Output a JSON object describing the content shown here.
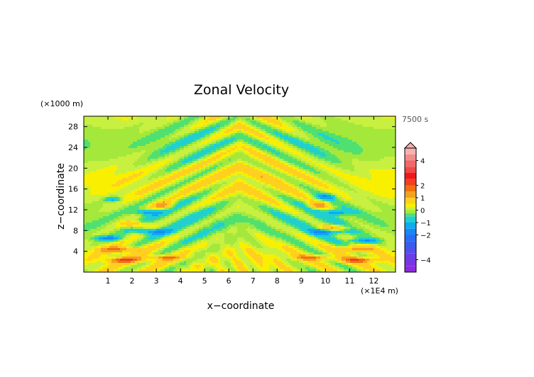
{
  "chart_data": {
    "type": "heatmap",
    "title": "Zonal Velocity",
    "time_label": "7500 s",
    "x_axis": {
      "label": "x−coordinate",
      "unit_label": "(×1E4 m)",
      "ticks": [
        "1",
        "2",
        "3",
        "4",
        "5",
        "6",
        "7",
        "8",
        "9",
        "10",
        "11",
        "12"
      ],
      "range": [
        0,
        12.9
      ]
    },
    "y_axis": {
      "label": "z−coordinate",
      "unit_label": "(×1000 m)",
      "ticks": [
        "4",
        "8",
        "12",
        "16",
        "20",
        "24",
        "28"
      ],
      "range": [
        0,
        30
      ]
    },
    "colorbar": {
      "tick_labels": [
        "4",
        "2",
        "1",
        "0",
        "−1",
        "−2",
        "−4"
      ],
      "tick_values": [
        4,
        2,
        1,
        0,
        -1,
        -2,
        -4
      ],
      "range": [
        -5,
        5
      ],
      "levels": [
        {
          "lo": -5.0,
          "hi": -4.5,
          "color": "#8a2be2"
        },
        {
          "lo": -4.5,
          "hi": -4.0,
          "color": "#7a35e6"
        },
        {
          "lo": -4.0,
          "hi": -3.5,
          "color": "#6a3fe8"
        },
        {
          "lo": -3.5,
          "hi": -3.0,
          "color": "#5050ec"
        },
        {
          "lo": -3.0,
          "hi": -2.5,
          "color": "#3c5cf0"
        },
        {
          "lo": -2.5,
          "hi": -2.0,
          "color": "#2a6cf4"
        },
        {
          "lo": -2.0,
          "hi": -1.5,
          "color": "#1a86f8"
        },
        {
          "lo": -1.5,
          "hi": -1.0,
          "color": "#10aaf0"
        },
        {
          "lo": -1.0,
          "hi": -0.5,
          "color": "#20d0d0"
        },
        {
          "lo": -0.5,
          "hi": -0.25,
          "color": "#50e070"
        },
        {
          "lo": -0.25,
          "hi": 0.0,
          "color": "#a4e83c"
        },
        {
          "lo": 0.0,
          "hi": 0.25,
          "color": "#c8f040"
        },
        {
          "lo": 0.25,
          "hi": 0.5,
          "color": "#f8f000"
        },
        {
          "lo": 0.5,
          "hi": 1.0,
          "color": "#ffd020"
        },
        {
          "lo": 1.0,
          "hi": 1.5,
          "color": "#f4a020"
        },
        {
          "lo": 1.5,
          "hi": 2.0,
          "color": "#f07010"
        },
        {
          "lo": 2.0,
          "hi": 2.5,
          "color": "#f04020"
        },
        {
          "lo": 2.5,
          "hi": 3.0,
          "color": "#f01818"
        },
        {
          "lo": 3.0,
          "hi": 3.5,
          "color": "#f04848"
        },
        {
          "lo": 3.5,
          "hi": 4.0,
          "color": "#f06868"
        },
        {
          "lo": 4.0,
          "hi": 4.5,
          "color": "#f48c8c"
        },
        {
          "lo": 4.5,
          "hi": 5.0,
          "color": "#f8b0b0"
        }
      ]
    },
    "field_features": [
      {
        "x": 1.7,
        "z": 2.3,
        "value": 1.2,
        "sx": 0.75,
        "sz": 0.5
      },
      {
        "x": 11.3,
        "z": 2.3,
        "value": 1.2,
        "sx": 0.75,
        "sz": 0.5
      },
      {
        "x": 1.4,
        "z": 4.3,
        "value": 1.1,
        "sx": 0.75,
        "sz": 0.55
      },
      {
        "x": 11.2,
        "z": 4.4,
        "value": 1.0,
        "sx": 0.75,
        "sz": 0.55
      },
      {
        "x": 3.3,
        "z": 2.8,
        "value": 1.0,
        "sx": 0.8,
        "sz": 0.45
      },
      {
        "x": 9.5,
        "z": 2.8,
        "value": 1.0,
        "sx": 0.8,
        "sz": 0.45
      },
      {
        "x": 1.0,
        "z": 6.5,
        "value": -1.2,
        "sx": 0.6,
        "sz": 0.5
      },
      {
        "x": 11.6,
        "z": 6.0,
        "value": -1.2,
        "sx": 0.6,
        "sz": 0.5
      },
      {
        "x": 2.8,
        "z": 7.8,
        "value": -1.1,
        "sx": 0.7,
        "sz": 0.55
      },
      {
        "x": 10.1,
        "z": 7.8,
        "value": -1.1,
        "sx": 0.7,
        "sz": 0.55
      },
      {
        "x": 2.1,
        "z": 9.2,
        "value": 1.0,
        "sx": 0.55,
        "sz": 0.6
      },
      {
        "x": 10.4,
        "z": 8.5,
        "value": 1.0,
        "sx": 0.6,
        "sz": 0.6
      },
      {
        "x": 2.6,
        "z": 11.5,
        "value": -1.0,
        "sx": 0.5,
        "sz": 0.55
      },
      {
        "x": 10.5,
        "z": 11.5,
        "value": -1.0,
        "sx": 0.5,
        "sz": 0.55
      },
      {
        "x": 3.3,
        "z": 12.8,
        "value": 1.0,
        "sx": 0.4,
        "sz": 0.7
      },
      {
        "x": 9.7,
        "z": 12.8,
        "value": 1.0,
        "sx": 0.4,
        "sz": 0.7
      },
      {
        "x": 1.2,
        "z": 14.0,
        "value": -1.0,
        "sx": 0.35,
        "sz": 0.45
      },
      {
        "x": 10.0,
        "z": 14.5,
        "value": -1.0,
        "sx": 0.4,
        "sz": 0.5
      }
    ]
  }
}
